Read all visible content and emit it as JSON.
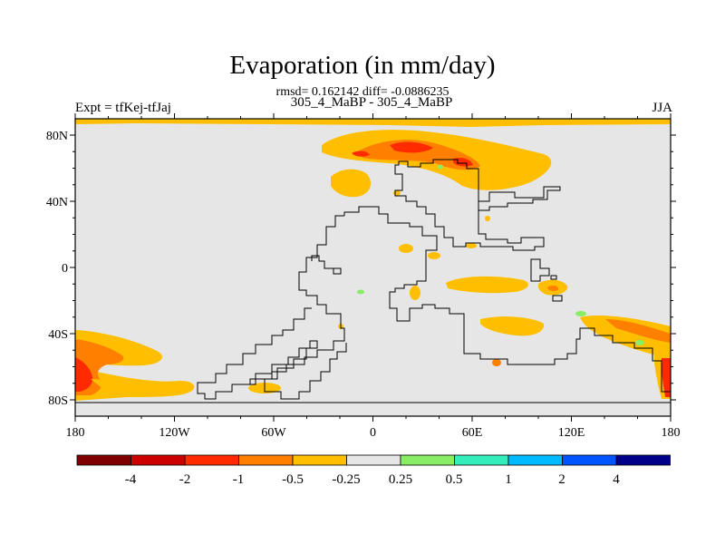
{
  "header": {
    "title": "Evaporation (in mm/day)",
    "stats": "rmsd= 0.162142 diff= -0.0886235",
    "subtitle": "305_4_MaBP - 305_4_MaBP",
    "left_string": "Expt = tfKej-tfJaj",
    "right_string": "JJA"
  },
  "map": {
    "lon_labels": [
      "180",
      "120W",
      "60W",
      "0",
      "60E",
      "120E",
      "180"
    ],
    "lat_labels": [
      "80N",
      "40N",
      "0",
      "40S",
      "80S"
    ],
    "background_color": "#e6e6e6"
  },
  "colorbar": {
    "colors": [
      "#7f0000",
      "#cc0000",
      "#ff2a00",
      "#ff7f00",
      "#ffbf00",
      "#e6e6e6",
      "#88ee66",
      "#33eebb",
      "#00bbff",
      "#0055ff",
      "#000088"
    ],
    "labels": [
      "-4",
      "-2",
      "-1",
      "-0.5",
      "-0.25",
      "0.25",
      "0.5",
      "1",
      "2",
      "4"
    ]
  }
}
